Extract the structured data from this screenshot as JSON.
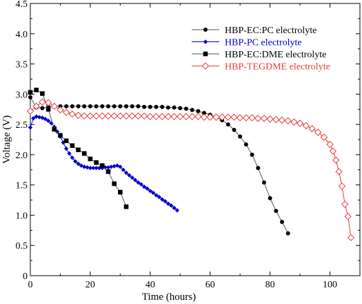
{
  "chart_data": {
    "type": "line",
    "xlabel": "Time (hours)",
    "ylabel": "Voltage (V)",
    "xlim": [
      0,
      110
    ],
    "ylim": [
      0,
      4.5
    ],
    "xticks": [
      0,
      20,
      40,
      60,
      80,
      100
    ],
    "yticks": [
      0,
      0.5,
      1.0,
      1.5,
      2.0,
      2.5,
      3.0,
      3.5,
      4.0,
      4.5
    ],
    "ytick_labels": [
      "0",
      "0.5",
      "1.0",
      "1.5",
      "2.0",
      "2.5",
      "3.0",
      "3.5",
      "4.0",
      "4.5"
    ],
    "grid": false,
    "legend_position": "top-right",
    "series": [
      {
        "name": "HBP-EC:PC electrolyte",
        "color": "#000000",
        "line_color": "#555555",
        "marker": "circle",
        "x": [
          0,
          2,
          4,
          6,
          8,
          10,
          12,
          14,
          16,
          18,
          20,
          22,
          24,
          26,
          28,
          30,
          32,
          34,
          36,
          38,
          40,
          42,
          44,
          46,
          48,
          50,
          52,
          54,
          56,
          58,
          60,
          62,
          64,
          66,
          68,
          70,
          72,
          74,
          76,
          78,
          80,
          82,
          84,
          86
        ],
        "y": [
          2.95,
          2.78,
          2.77,
          2.79,
          2.8,
          2.8,
          2.8,
          2.8,
          2.8,
          2.8,
          2.8,
          2.8,
          2.8,
          2.8,
          2.8,
          2.8,
          2.8,
          2.8,
          2.8,
          2.79,
          2.79,
          2.79,
          2.79,
          2.78,
          2.78,
          2.77,
          2.76,
          2.74,
          2.72,
          2.69,
          2.66,
          2.62,
          2.57,
          2.5,
          2.41,
          2.3,
          2.17,
          2.0,
          1.78,
          1.54,
          1.28,
          1.07,
          0.89,
          0.7
        ]
      },
      {
        "name": "HBP-PC electrolyte",
        "color": "#0000cc",
        "line_color": "#0000cc",
        "marker": "diamond",
        "x": [
          0,
          1,
          2,
          3,
          4,
          5,
          6,
          7,
          8,
          9,
          10,
          11,
          12,
          13,
          14,
          15,
          16,
          17,
          18,
          19,
          20,
          21,
          22,
          23,
          24,
          25,
          26,
          27,
          28,
          29,
          30,
          31,
          32,
          33,
          34,
          35,
          36,
          37,
          38,
          39,
          40,
          41,
          42,
          43,
          44,
          45,
          46,
          47,
          48,
          49
        ],
        "y": [
          2.45,
          2.6,
          2.63,
          2.62,
          2.61,
          2.59,
          2.56,
          2.52,
          2.46,
          2.38,
          2.3,
          2.2,
          2.1,
          2.02,
          1.95,
          1.89,
          1.85,
          1.82,
          1.8,
          1.79,
          1.78,
          1.78,
          1.78,
          1.78,
          1.78,
          1.79,
          1.79,
          1.8,
          1.81,
          1.82,
          1.8,
          1.75,
          1.7,
          1.66,
          1.62,
          1.58,
          1.54,
          1.51,
          1.47,
          1.44,
          1.4,
          1.37,
          1.33,
          1.3,
          1.26,
          1.23,
          1.19,
          1.16,
          1.12,
          1.08
        ]
      },
      {
        "name": "HBP-EC:DME electrolyte",
        "color": "#000000",
        "line_color": "#555555",
        "marker": "square",
        "x": [
          0,
          2,
          4,
          6,
          8,
          10,
          12,
          14,
          16,
          18,
          20,
          22,
          24,
          26,
          28,
          30,
          32
        ],
        "y": [
          3.03,
          3.07,
          3.01,
          2.75,
          2.42,
          2.32,
          2.23,
          2.15,
          2.08,
          2.02,
          1.93,
          1.87,
          1.82,
          1.72,
          1.52,
          1.38,
          1.14
        ]
      },
      {
        "name": "HBP-TEGDME electrolyte",
        "color": "#e83c3c",
        "line_color": "#e83c3c",
        "marker": "open-diamond",
        "x": [
          0,
          2,
          4,
          6,
          8,
          10,
          12,
          14,
          16,
          18,
          20,
          22,
          24,
          26,
          28,
          30,
          32,
          34,
          36,
          38,
          40,
          42,
          44,
          46,
          48,
          50,
          52,
          54,
          56,
          58,
          60,
          62,
          64,
          66,
          68,
          70,
          72,
          74,
          76,
          78,
          80,
          82,
          84,
          86,
          88,
          90,
          92,
          94,
          96,
          98,
          100,
          101,
          102,
          103,
          104,
          105,
          106,
          107
        ],
        "y": [
          2.72,
          2.8,
          2.87,
          2.86,
          2.8,
          2.74,
          2.7,
          2.67,
          2.65,
          2.64,
          2.64,
          2.64,
          2.64,
          2.64,
          2.64,
          2.64,
          2.64,
          2.64,
          2.64,
          2.64,
          2.63,
          2.63,
          2.63,
          2.63,
          2.63,
          2.63,
          2.63,
          2.63,
          2.63,
          2.62,
          2.62,
          2.62,
          2.62,
          2.62,
          2.62,
          2.61,
          2.61,
          2.61,
          2.6,
          2.6,
          2.59,
          2.58,
          2.57,
          2.56,
          2.54,
          2.52,
          2.48,
          2.43,
          2.37,
          2.29,
          2.17,
          2.06,
          1.91,
          1.72,
          1.48,
          1.18,
          0.98,
          0.63
        ]
      }
    ]
  }
}
